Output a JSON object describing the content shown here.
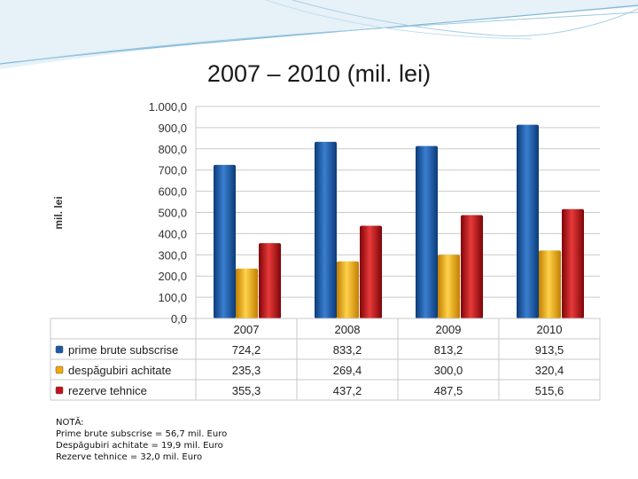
{
  "slide": {
    "title": "2007 – 2010 (mil. lei)"
  },
  "note": {
    "heading": "NOTĂ:",
    "lines": [
      "Prime brute subscrise = 56,7 mil. Euro",
      "Despăgubiri achitate = 19,9 mil. Euro",
      "Rezerve tehnice = 32,0 mil. Euro"
    ]
  },
  "colors": {
    "blue": "#1a5aa6",
    "blue_dark": "#0b3b78",
    "orange": "#f4a800",
    "orange_dark": "#c27e00",
    "red": "#c8101c",
    "red_dark": "#7e0408",
    "grid": "#c9c9c9",
    "swoosh": "#7fb8d8"
  },
  "chart_data": {
    "type": "bar",
    "title": "2007 – 2010 (mil. lei)",
    "xlabel": "",
    "ylabel": "mil. lei",
    "ylim": [
      0,
      1000
    ],
    "yticks": [
      0,
      100,
      200,
      300,
      400,
      500,
      600,
      700,
      800,
      900,
      1000
    ],
    "ytick_labels": [
      "0,0",
      "100,0",
      "200,0",
      "300,0",
      "400,0",
      "500,0",
      "600,0",
      "700,0",
      "800,0",
      "900,0",
      "1.000,0"
    ],
    "categories": [
      "2007",
      "2008",
      "2009",
      "2010"
    ],
    "grid": true,
    "legend": "data-table-below",
    "series": [
      {
        "name": "prime brute subscrise",
        "color": "#1a5aa6",
        "values": [
          724.2,
          833.2,
          813.2,
          913.5
        ],
        "labels": [
          "724,2",
          "833,2",
          "813,2",
          "913,5"
        ]
      },
      {
        "name": "despăgubiri achitate",
        "color": "#f4a800",
        "values": [
          235.3,
          269.4,
          300.0,
          320.4
        ],
        "labels": [
          "235,3",
          "269,4",
          "300,0",
          "320,4"
        ]
      },
      {
        "name": "rezerve tehnice",
        "color": "#c8101c",
        "values": [
          355.3,
          437.2,
          487.5,
          515.6
        ],
        "labels": [
          "355,3",
          "437,2",
          "487,5",
          "515,6"
        ]
      }
    ]
  }
}
